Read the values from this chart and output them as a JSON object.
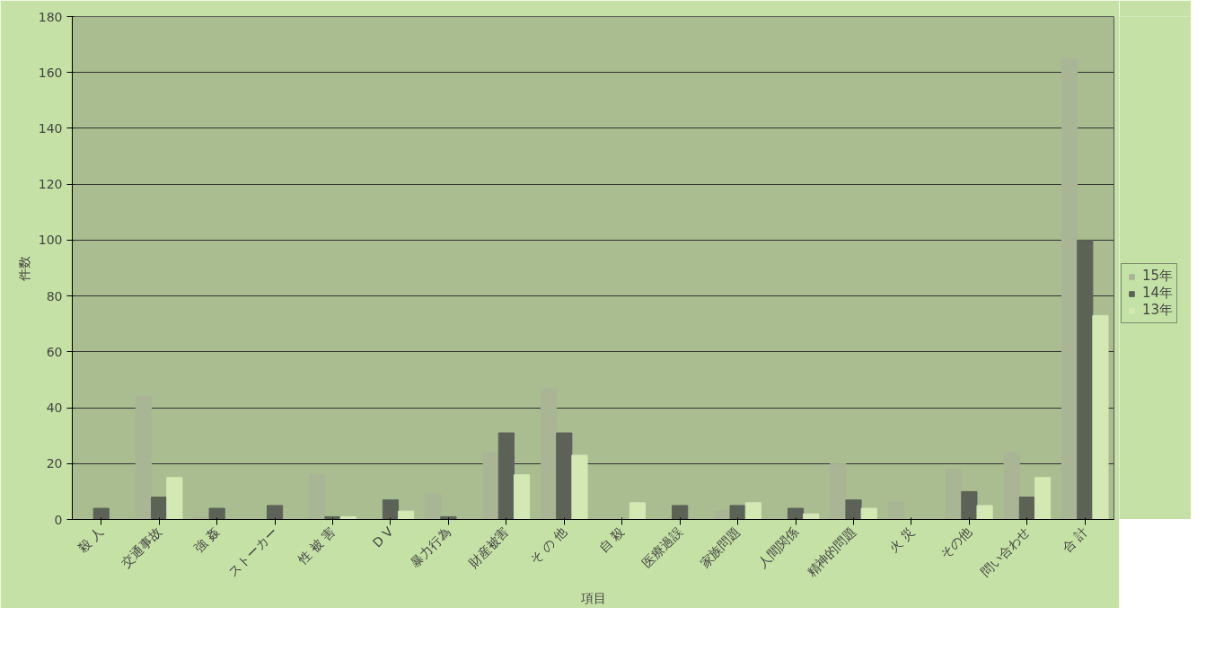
{
  "chart_data": {
    "type": "bar",
    "xlabel": "項目",
    "ylabel": "件数",
    "categories": [
      "殺 人",
      "交通事故",
      "強 姦",
      "ストーカー",
      "性 被 害",
      "D V",
      "暴力行為",
      "財産被害",
      "そ の 他",
      "自 殺",
      "医療過誤",
      "家族問題",
      "人間関係",
      "精神的問題",
      "火 災",
      "その他",
      "問い合わせ",
      "合 計"
    ],
    "series": [
      {
        "name": "15年",
        "color": "#aab596",
        "values": [
          0,
          44,
          1,
          0,
          16,
          0,
          9,
          24,
          47,
          0,
          0,
          3,
          0,
          20,
          6,
          18,
          24,
          165
        ]
      },
      {
        "name": "14年",
        "color": "#5c6356",
        "values": [
          4,
          8,
          4,
          5,
          1,
          7,
          1,
          31,
          31,
          0,
          5,
          5,
          4,
          7,
          0,
          10,
          8,
          100
        ]
      },
      {
        "name": "13年",
        "color": "#d3e8b2",
        "values": [
          0,
          15,
          0,
          0,
          1,
          3,
          0,
          16,
          23,
          6,
          0,
          6,
          2,
          4,
          0,
          5,
          15,
          73
        ]
      }
    ],
    "ylim": [
      0,
      180
    ],
    "yticks": [
      0,
      20,
      40,
      60,
      80,
      100,
      120,
      140,
      160,
      180
    ],
    "grid": "y",
    "legend": "right"
  }
}
